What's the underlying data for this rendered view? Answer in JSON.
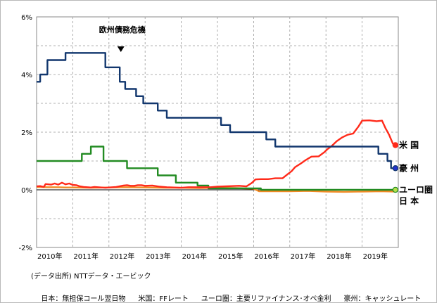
{
  "chart_data": {
    "type": "line",
    "title": "",
    "xlabel": "",
    "ylabel": "",
    "xlim": [
      2010.0,
      2020.0
    ],
    "ylim": [
      -2,
      6
    ],
    "yticks": [
      -2,
      0,
      2,
      4,
      6
    ],
    "ytick_labels": [
      "-2%",
      "0%",
      "2%",
      "4%",
      "6%"
    ],
    "xticks": [
      2010,
      2011,
      2012,
      2013,
      2014,
      2015,
      2016,
      2017,
      2018,
      2019
    ],
    "xtick_labels": [
      "2010年",
      "2011年",
      "2012年",
      "2013年",
      "2014年",
      "2015年",
      "2016年",
      "2017年",
      "2018年",
      "2019年"
    ],
    "grid": "dashed",
    "annotation": {
      "text": "欧州債務危機",
      "x": 2012.33,
      "marker": "down-triangle"
    },
    "series": [
      {
        "name": "米 国",
        "color": "#ff2a1a",
        "end_marker": true,
        "points": [
          [
            2010.0,
            0.12
          ],
          [
            2010.1,
            0.13
          ],
          [
            2010.2,
            0.1
          ],
          [
            2010.25,
            0.2
          ],
          [
            2010.4,
            0.18
          ],
          [
            2010.5,
            0.22
          ],
          [
            2010.6,
            0.18
          ],
          [
            2010.7,
            0.25
          ],
          [
            2010.8,
            0.19
          ],
          [
            2010.9,
            0.22
          ],
          [
            2011.0,
            0.17
          ],
          [
            2011.1,
            0.16
          ],
          [
            2011.2,
            0.12
          ],
          [
            2011.3,
            0.1
          ],
          [
            2011.4,
            0.09
          ],
          [
            2011.5,
            0.08
          ],
          [
            2011.6,
            0.1
          ],
          [
            2011.7,
            0.09
          ],
          [
            2011.8,
            0.08
          ],
          [
            2011.9,
            0.07
          ],
          [
            2012.0,
            0.08
          ],
          [
            2012.2,
            0.1
          ],
          [
            2012.4,
            0.15
          ],
          [
            2012.5,
            0.16
          ],
          [
            2012.6,
            0.14
          ],
          [
            2012.7,
            0.14
          ],
          [
            2012.8,
            0.16
          ],
          [
            2012.9,
            0.16
          ],
          [
            2013.0,
            0.14
          ],
          [
            2013.2,
            0.15
          ],
          [
            2013.4,
            0.11
          ],
          [
            2013.6,
            0.09
          ],
          [
            2013.8,
            0.08
          ],
          [
            2014.0,
            0.07
          ],
          [
            2014.2,
            0.09
          ],
          [
            2014.4,
            0.09
          ],
          [
            2014.6,
            0.09
          ],
          [
            2014.8,
            0.09
          ],
          [
            2015.0,
            0.11
          ],
          [
            2015.2,
            0.12
          ],
          [
            2015.4,
            0.13
          ],
          [
            2015.6,
            0.14
          ],
          [
            2015.8,
            0.12
          ],
          [
            2015.95,
            0.24
          ],
          [
            2016.05,
            0.36
          ],
          [
            2016.2,
            0.37
          ],
          [
            2016.4,
            0.37
          ],
          [
            2016.6,
            0.4
          ],
          [
            2016.8,
            0.4
          ],
          [
            2016.95,
            0.55
          ],
          [
            2017.05,
            0.65
          ],
          [
            2017.15,
            0.79
          ],
          [
            2017.3,
            0.91
          ],
          [
            2017.45,
            1.04
          ],
          [
            2017.6,
            1.15
          ],
          [
            2017.8,
            1.16
          ],
          [
            2017.95,
            1.3
          ],
          [
            2018.05,
            1.42
          ],
          [
            2018.15,
            1.51
          ],
          [
            2018.3,
            1.69
          ],
          [
            2018.45,
            1.82
          ],
          [
            2018.6,
            1.91
          ],
          [
            2018.75,
            1.95
          ],
          [
            2018.9,
            2.2
          ],
          [
            2019.0,
            2.4
          ],
          [
            2019.2,
            2.41
          ],
          [
            2019.4,
            2.38
          ],
          [
            2019.55,
            2.4
          ],
          [
            2019.65,
            2.13
          ],
          [
            2019.75,
            1.9
          ],
          [
            2019.85,
            1.6
          ],
          [
            2019.92,
            1.55
          ]
        ]
      },
      {
        "name": "豪 州",
        "color": "#12376e",
        "end_marker": true,
        "points": [
          [
            2010.0,
            3.75
          ],
          [
            2010.1,
            4.0
          ],
          [
            2010.3,
            4.5
          ],
          [
            2010.8,
            4.75
          ],
          [
            2011.9,
            4.25
          ],
          [
            2012.3,
            3.75
          ],
          [
            2012.45,
            3.5
          ],
          [
            2012.75,
            3.25
          ],
          [
            2012.95,
            3.0
          ],
          [
            2013.35,
            2.75
          ],
          [
            2013.6,
            2.5
          ],
          [
            2015.1,
            2.25
          ],
          [
            2015.35,
            2.0
          ],
          [
            2016.35,
            1.75
          ],
          [
            2016.6,
            1.5
          ],
          [
            2019.45,
            1.25
          ],
          [
            2019.7,
            1.0
          ],
          [
            2019.8,
            0.75
          ],
          [
            2019.92,
            0.75
          ]
        ]
      },
      {
        "name": "ユーロ圏",
        "color": "#228b22",
        "end_marker": true,
        "points": [
          [
            2010.0,
            1.0
          ],
          [
            2011.25,
            1.25
          ],
          [
            2011.5,
            1.5
          ],
          [
            2011.85,
            1.0
          ],
          [
            2012.5,
            0.75
          ],
          [
            2013.35,
            0.5
          ],
          [
            2013.85,
            0.25
          ],
          [
            2014.45,
            0.15
          ],
          [
            2014.75,
            0.05
          ],
          [
            2016.2,
            0.0
          ],
          [
            2019.92,
            0.0
          ]
        ]
      },
      {
        "name": "日 本",
        "color": "#f08a24",
        "end_marker": false,
        "points": [
          [
            2010.0,
            0.1
          ],
          [
            2010.3,
            0.09
          ],
          [
            2010.6,
            0.09
          ],
          [
            2010.8,
            0.08
          ],
          [
            2011.0,
            0.08
          ],
          [
            2011.5,
            0.07
          ],
          [
            2012.0,
            0.08
          ],
          [
            2012.5,
            0.09
          ],
          [
            2013.0,
            0.08
          ],
          [
            2013.5,
            0.07
          ],
          [
            2014.0,
            0.07
          ],
          [
            2014.5,
            0.06
          ],
          [
            2015.0,
            0.07
          ],
          [
            2015.5,
            0.06
          ],
          [
            2016.0,
            0.04
          ],
          [
            2016.15,
            -0.05
          ],
          [
            2016.5,
            -0.05
          ],
          [
            2017.0,
            -0.05
          ],
          [
            2017.5,
            -0.04
          ],
          [
            2018.0,
            -0.06
          ],
          [
            2018.5,
            -0.07
          ],
          [
            2019.0,
            -0.06
          ],
          [
            2019.5,
            -0.05
          ],
          [
            2019.92,
            -0.06
          ]
        ]
      }
    ]
  },
  "source": "(データ出所) NTTデータ・エービック",
  "notes": [
    "日本：無担保コール翌日物",
    "米国：FFレート",
    "ユーロ圏：主要リファイナンス･オペ金利",
    "豪州：キャッシュレート"
  ]
}
